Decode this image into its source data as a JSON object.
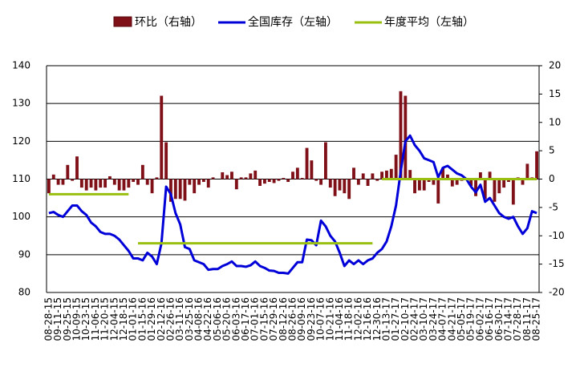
{
  "chart_data": {
    "type": "combo",
    "categories": [
      "08-28-15",
      null,
      "09-11-15",
      null,
      "09-25-15",
      null,
      "10-09-15",
      null,
      "10-23-15",
      null,
      "11-06-15",
      null,
      "11-20-15",
      null,
      "12-04-15",
      null,
      "12-18-15",
      null,
      "01-01-16",
      null,
      "01-15-16",
      null,
      "01-29-16",
      null,
      "02-12-16",
      null,
      "02-26-16",
      null,
      "03-11-16",
      null,
      "03-25-16",
      null,
      "04-08-16",
      null,
      "04-22-16",
      null,
      "05-06-16",
      null,
      "05-20-16",
      null,
      "06-03-16",
      null,
      "06-17-16",
      null,
      "07-01-16",
      null,
      "07-15-16",
      null,
      "07-29-16",
      null,
      "08-12-16",
      null,
      "08-26-16",
      null,
      "09-09-16",
      null,
      "09-23-16",
      null,
      "10-07-16",
      null,
      "10-21-16",
      null,
      "11-04-16",
      null,
      "11-18-16",
      null,
      "12-02-16",
      null,
      "12-16-16",
      null,
      "12-30-16",
      null,
      "01-13-17",
      null,
      "01-27-17",
      null,
      "02-10-17",
      null,
      "02-24-17",
      null,
      "03-10-17",
      null,
      "03-24-17",
      null,
      "04-07-17",
      null,
      "04-21-17",
      null,
      "05-05-17",
      null,
      "05-19-17",
      null,
      "06-02-17",
      null,
      "06-16-17",
      null,
      "06-30-17",
      null,
      "07-14-17",
      null,
      "07-28-17",
      null,
      "08-11-17",
      null,
      "08-25-17"
    ],
    "series": [
      {
        "name": "环比（右轴）",
        "type": "bar",
        "axis": "y2",
        "color": "#7f1018",
        "values": [
          -2.5,
          0.8,
          -1,
          -1,
          2.5,
          -0.3,
          4,
          -1.5,
          -2,
          -1.5,
          -2,
          -1.5,
          -1.5,
          0.5,
          -1,
          -2,
          -2,
          -1.5,
          -0.5,
          -1,
          2.5,
          -1,
          -2.5,
          0.3,
          14.7,
          6.5,
          -4,
          -3.5,
          -3.5,
          -3.8,
          -1,
          -2.5,
          -1,
          -0.5,
          -1.5,
          0.3,
          0,
          1.2,
          0.7,
          1.3,
          -1.8,
          0.3,
          0.3,
          1,
          1.5,
          -1.2,
          -0.8,
          -0.5,
          -0.7,
          -0.3,
          0.2,
          -0.5,
          1.3,
          2,
          0.2,
          5.5,
          3.3,
          -0.3,
          -1,
          6.5,
          -1.5,
          -3,
          -2,
          -2.5,
          -3.5,
          2,
          -1,
          1,
          -1.2,
          1,
          -0.3,
          1.3,
          1.5,
          1.8,
          4.3,
          15.5,
          14.7,
          1.6,
          -2.5,
          -2,
          -2,
          -0.5,
          -1,
          -4.3,
          2,
          0.8,
          -1.3,
          -1,
          -0.3,
          0.2,
          -1.2,
          -3,
          1.2,
          -3.5,
          1.3,
          -4,
          -2.5,
          -1.5,
          -0.5,
          -4.5,
          0.3,
          -1,
          2.7,
          0.3,
          4.9
        ]
      },
      {
        "name": "全国库存（左轴）",
        "type": "line",
        "color": "#0000d8",
        "values": [
          101,
          101.3,
          100.5,
          100,
          101.5,
          103,
          103,
          101.5,
          100.5,
          98.5,
          97.5,
          96,
          95.5,
          95.5,
          95,
          94,
          92.5,
          91,
          89,
          89,
          88.5,
          90.5,
          89.5,
          87.5,
          93,
          108,
          106,
          101,
          98,
          92,
          91.5,
          88.5,
          88,
          87.5,
          86,
          86.2,
          86.2,
          87,
          87.5,
          88.2,
          87,
          87,
          86.8,
          87.2,
          88.2,
          87,
          86.5,
          85.8,
          85.7,
          85.2,
          85.2,
          85,
          86.5,
          88,
          88,
          94,
          93.8,
          92.5,
          99,
          97.5,
          95,
          93.5,
          90.5,
          87,
          88.5,
          87.5,
          88.5,
          87.5,
          88.5,
          89,
          90.5,
          91.5,
          93.5,
          97.5,
          103,
          112,
          120,
          121.5,
          119,
          117.5,
          115.5,
          115,
          114.5,
          110.5,
          113,
          113.5,
          112.5,
          111.5,
          111,
          110,
          108,
          106.5,
          108.5,
          104,
          105,
          103,
          101,
          100,
          99.5,
          100,
          97.5,
          95.5,
          97,
          101.5,
          101
        ]
      },
      {
        "name": "年度平均（左轴）",
        "type": "line",
        "color": "#99c010",
        "values": [
          106,
          106,
          106,
          106,
          106,
          106,
          106,
          106,
          106,
          106,
          106,
          106,
          106,
          106,
          106,
          106,
          106,
          106,
          null,
          93,
          93,
          93,
          93,
          93,
          93,
          93,
          93,
          93,
          93,
          93,
          93,
          93,
          93,
          93,
          93,
          93,
          93,
          93,
          93,
          93,
          93,
          93,
          93,
          93,
          93,
          93,
          93,
          93,
          93,
          93,
          93,
          93,
          93,
          93,
          93,
          93,
          93,
          93,
          93,
          93,
          93,
          93,
          93,
          93,
          93,
          93,
          93,
          93,
          93,
          93,
          null,
          110,
          110,
          110,
          110,
          110,
          110,
          110,
          110,
          110,
          110,
          110,
          110,
          110,
          110,
          110,
          110,
          110,
          110,
          110,
          110,
          110,
          110,
          110,
          110,
          110,
          110,
          110,
          110,
          110,
          110,
          110,
          110,
          110,
          110
        ]
      }
    ],
    "ylim": [
      80,
      140
    ],
    "yticks": [
      80,
      90,
      100,
      110,
      120,
      130,
      140
    ],
    "y2lim": [
      -20,
      20
    ],
    "y2ticks": [
      -20,
      -15,
      -10,
      -5,
      0,
      5,
      10,
      15,
      20
    ],
    "grid": true
  }
}
